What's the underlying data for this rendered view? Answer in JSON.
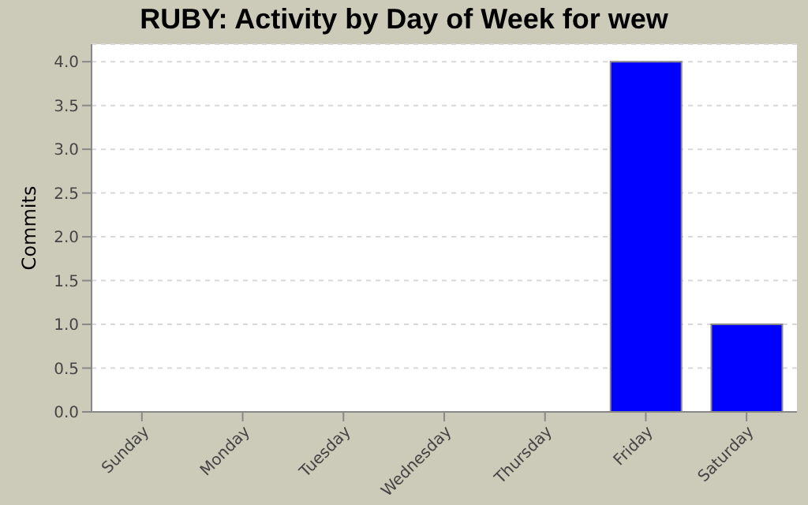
{
  "chart_data": {
    "type": "bar",
    "title": "RUBY: Activity by Day of Week for wew",
    "ylabel": "Commits",
    "categories": [
      "Sunday",
      "Monday",
      "Tuesday",
      "Wednesday",
      "Thursday",
      "Friday",
      "Saturday"
    ],
    "values": [
      0,
      0,
      0,
      0,
      0,
      4,
      1
    ],
    "color": "#0000ff",
    "ylim": [
      0,
      4.2
    ],
    "yticks": [
      {
        "value": 0,
        "label": "0.0"
      },
      {
        "value": 0.5,
        "label": "0.5"
      },
      {
        "value": 1,
        "label": "1.0"
      },
      {
        "value": 1.5,
        "label": "1.5"
      },
      {
        "value": 2,
        "label": "2.0"
      },
      {
        "value": 2.5,
        "label": "2.5"
      },
      {
        "value": 3,
        "label": "3.0"
      },
      {
        "value": 3.5,
        "label": "3.5"
      },
      {
        "value": 4,
        "label": "4.0"
      }
    ],
    "grid": "y",
    "legend": false
  }
}
